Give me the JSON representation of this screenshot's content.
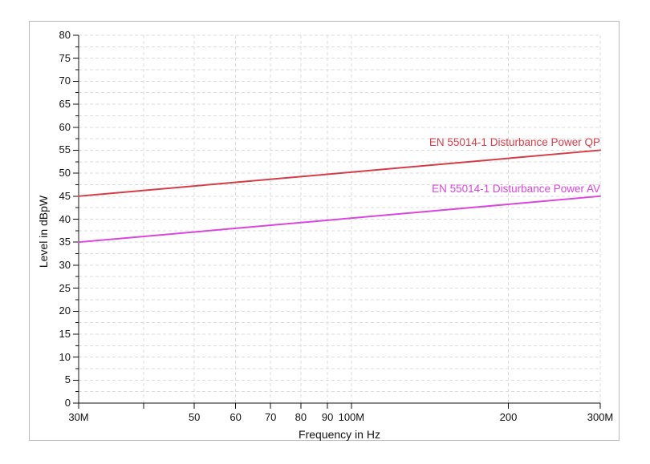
{
  "chart_data": {
    "type": "line",
    "title": "",
    "xlabel": "Frequency in Hz",
    "ylabel": "Level in dBpW",
    "x_scale": "log",
    "x_unit": "MHz",
    "xlim_mhz": [
      30,
      300
    ],
    "ylim": [
      0,
      80
    ],
    "y_major_step": 5,
    "y_minor_step": 2.5,
    "x_ticks_mhz": [
      30,
      40,
      50,
      60,
      70,
      80,
      90,
      100,
      200,
      300
    ],
    "x_tick_labels": [
      "30M",
      "",
      "50",
      "60",
      "70",
      "80",
      "90",
      "100M",
      "200",
      "300M"
    ],
    "grid": {
      "show": true,
      "color": "#dbdbdb",
      "style": "dashed"
    },
    "axis_color": "#111111",
    "frame_border_color": "#b9b9b9",
    "series": [
      {
        "name": "EN 55014-1 Disturbance Power QP",
        "color": "#d53c46",
        "points_mhz_db": [
          [
            30,
            45
          ],
          [
            300,
            55
          ]
        ]
      },
      {
        "name": "EN 55014-1 Disturbance Power AV",
        "color": "#d846dc",
        "points_mhz_db": [
          [
            30,
            35
          ],
          [
            300,
            45
          ]
        ]
      }
    ],
    "legend": {
      "position": "inline-right-above-lines",
      "entries": [
        "EN 55014-1 Disturbance Power QP",
        "EN 55014-1 Disturbance Power AV"
      ]
    }
  }
}
